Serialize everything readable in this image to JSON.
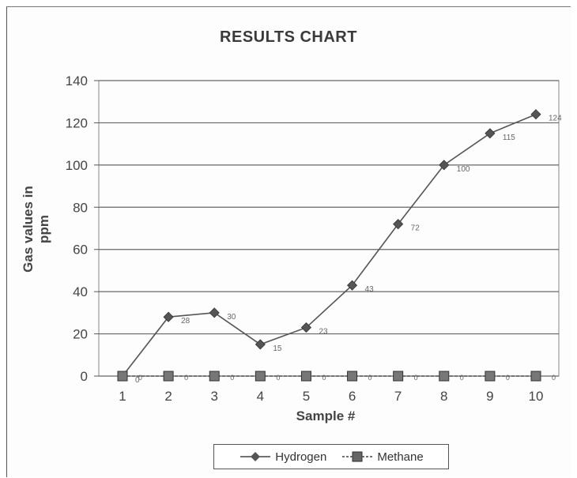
{
  "chart_data": {
    "type": "line",
    "title": "RESULTS CHART",
    "xlabel": "Sample #",
    "ylabel_line1": "Gas values in",
    "ylabel_line2": "ppm",
    "categories": [
      "1",
      "2",
      "3",
      "4",
      "5",
      "6",
      "7",
      "8",
      "9",
      "10"
    ],
    "ylim": [
      0,
      140
    ],
    "yticks": [
      0,
      20,
      40,
      60,
      80,
      100,
      120,
      140
    ],
    "grid": true,
    "legend_position": "bottom",
    "series": [
      {
        "name": "Hydrogen",
        "marker": "diamond",
        "color": "#555555",
        "values": [
          0,
          28,
          30,
          15,
          23,
          43,
          72,
          100,
          115,
          124
        ],
        "labels": [
          "0",
          "28",
          "30",
          "15",
          "23",
          "43",
          "72",
          "100",
          "115",
          "124"
        ]
      },
      {
        "name": "Methane",
        "marker": "square",
        "color": "#555555",
        "values": [
          0,
          0,
          0,
          0,
          0,
          0,
          0,
          0,
          0,
          0
        ],
        "labels": [
          "0",
          "0",
          "0",
          "0",
          "0",
          "0",
          "0",
          "0",
          "0",
          "0"
        ]
      }
    ]
  }
}
